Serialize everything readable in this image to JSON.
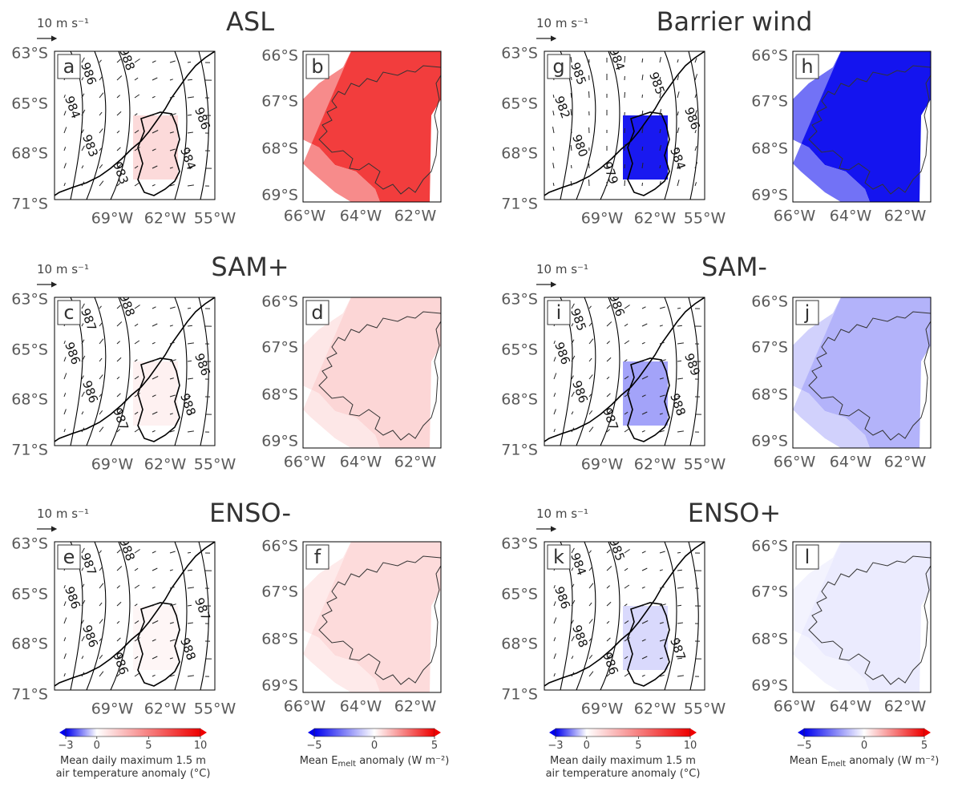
{
  "figure": {
    "ref_vector": "10 m s⁻¹",
    "rows": [
      [
        {
          "title": "ASL",
          "left": "a",
          "right": "b",
          "t_anom": 1.6,
          "e_anom": 3.8,
          "contours": [
            "986",
            "988",
            "984",
            "983",
            "983",
            "984",
            "986"
          ]
        },
        {
          "title": "Barrier wind",
          "left": "g",
          "right": "h",
          "t_anom": -4.5,
          "e_anom": -4.6,
          "contours": [
            "985",
            "984",
            "982",
            "980",
            "979",
            "984",
            "986",
            "985"
          ]
        }
      ],
      [
        {
          "title": "SAM+",
          "left": "c",
          "right": "d",
          "t_anom": 0.6,
          "e_anom": 0.8,
          "contours": [
            "987",
            "988",
            "986",
            "986",
            "987",
            "988",
            "986"
          ]
        },
        {
          "title": "SAM-",
          "left": "i",
          "right": "j",
          "t_anom": -1.2,
          "e_anom": -1.5,
          "contours": [
            "985",
            "986",
            "986",
            "986",
            "987",
            "988",
            "989"
          ]
        }
      ],
      [
        {
          "title": "ENSO-",
          "left": "e",
          "right": "f",
          "t_anom": 0.4,
          "e_anom": 0.7,
          "contours": [
            "987",
            "988",
            "986",
            "986",
            "986",
            "988",
            "987"
          ]
        },
        {
          "title": "ENSO+",
          "left": "k",
          "right": "l",
          "t_anom": -0.5,
          "e_anom": -0.4,
          "contours": [
            "984",
            "985",
            "986",
            "988",
            "986",
            "987"
          ]
        }
      ]
    ]
  },
  "chart_data": {
    "type": "heatmap",
    "panels": [
      {
        "id": "a",
        "composite": "ASL",
        "field": "Mean daily maximum 1.5 m air temperature anomaly (°C)",
        "approx_anomaly": 1.6
      },
      {
        "id": "b",
        "composite": "ASL",
        "field": "Mean E_melt anomaly (W m⁻²)",
        "approx_anomaly": 3.8
      },
      {
        "id": "g",
        "composite": "Barrier wind",
        "field": "Mean daily maximum 1.5 m air temperature anomaly (°C)",
        "approx_anomaly": -4.5
      },
      {
        "id": "h",
        "composite": "Barrier wind",
        "field": "Mean E_melt anomaly (W m⁻²)",
        "approx_anomaly": -4.6
      },
      {
        "id": "c",
        "composite": "SAM+",
        "field": "Mean daily maximum 1.5 m air temperature anomaly (°C)",
        "approx_anomaly": 0.6
      },
      {
        "id": "d",
        "composite": "SAM+",
        "field": "Mean E_melt anomaly (W m⁻²)",
        "approx_anomaly": 0.8
      },
      {
        "id": "i",
        "composite": "SAM-",
        "field": "Mean daily maximum 1.5 m air temperature anomaly (°C)",
        "approx_anomaly": -1.2
      },
      {
        "id": "j",
        "composite": "SAM-",
        "field": "Mean E_melt anomaly (W m⁻²)",
        "approx_anomaly": -1.5
      },
      {
        "id": "e",
        "composite": "ENSO-",
        "field": "Mean daily maximum 1.5 m air temperature anomaly (°C)",
        "approx_anomaly": 0.4
      },
      {
        "id": "f",
        "composite": "ENSO-",
        "field": "Mean E_melt anomaly (W m⁻²)",
        "approx_anomaly": 0.7
      },
      {
        "id": "k",
        "composite": "ENSO+",
        "field": "Mean daily maximum 1.5 m air temperature anomaly (°C)",
        "approx_anomaly": -0.5
      },
      {
        "id": "l",
        "composite": "ENSO+",
        "field": "Mean E_melt anomaly (W m⁻²)",
        "approx_anomaly": -0.4
      }
    ],
    "large_map_axes": {
      "lat_ticks": [
        "63°S",
        "65°S",
        "68°S",
        "71°S"
      ],
      "lon_ticks": [
        "69°W",
        "62°W",
        "55°W"
      ]
    },
    "small_map_axes": {
      "lat_ticks": [
        "66°S",
        "67°S",
        "68°S",
        "69°S"
      ],
      "lon_ticks": [
        "66°W",
        "64°W",
        "62°W"
      ]
    },
    "colorbars": {
      "temperature": {
        "label": "Mean daily maximum 1.5 m air temperature anomaly (°C)",
        "label_line1": "Mean daily maximum 1.5 m",
        "label_line2": "air temperature anomaly (°C)",
        "ticks": [
          "−3",
          "0",
          "5",
          "10"
        ],
        "range": [
          -3,
          10
        ]
      },
      "melt": {
        "label_pre": "Mean E",
        "label_sub": "melt",
        "label_post": " anomaly (W m⁻²)",
        "ticks": [
          "−5",
          "0",
          "5"
        ],
        "range": [
          -5,
          5
        ]
      }
    }
  }
}
